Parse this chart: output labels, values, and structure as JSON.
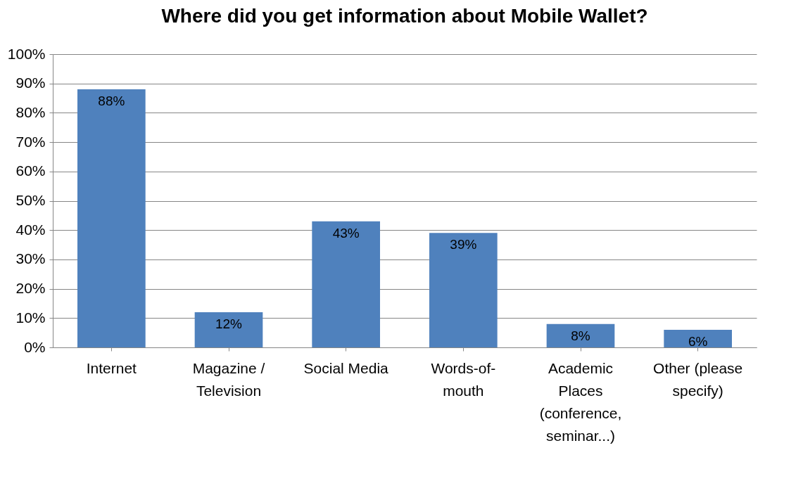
{
  "chart_data": {
    "type": "bar",
    "title": "Where did you get information about Mobile Wallet?",
    "categories": [
      "Internet",
      "Magazine / Television",
      "Social Media",
      "Words-of-mouth",
      "Academic Places (conference, seminar...)",
      "Other (please specify)"
    ],
    "values": [
      88,
      12,
      43,
      39,
      8,
      6
    ],
    "value_labels": [
      "88%",
      "12%",
      "43%",
      "39%",
      "8%",
      "6%"
    ],
    "color": "#4f81bd",
    "ylim": [
      0,
      100
    ],
    "yticks": [
      {
        "value": 0,
        "label": "0%"
      },
      {
        "value": 10,
        "label": "10%"
      },
      {
        "value": 20,
        "label": "20%"
      },
      {
        "value": 30,
        "label": "30%"
      },
      {
        "value": 40,
        "label": "40%"
      },
      {
        "value": 50,
        "label": "50%"
      },
      {
        "value": 60,
        "label": "60%"
      },
      {
        "value": 70,
        "label": "70%"
      },
      {
        "value": 80,
        "label": "80%"
      },
      {
        "value": 90,
        "label": "90%"
      },
      {
        "value": 100,
        "label": "100%"
      }
    ],
    "grid": "y"
  }
}
